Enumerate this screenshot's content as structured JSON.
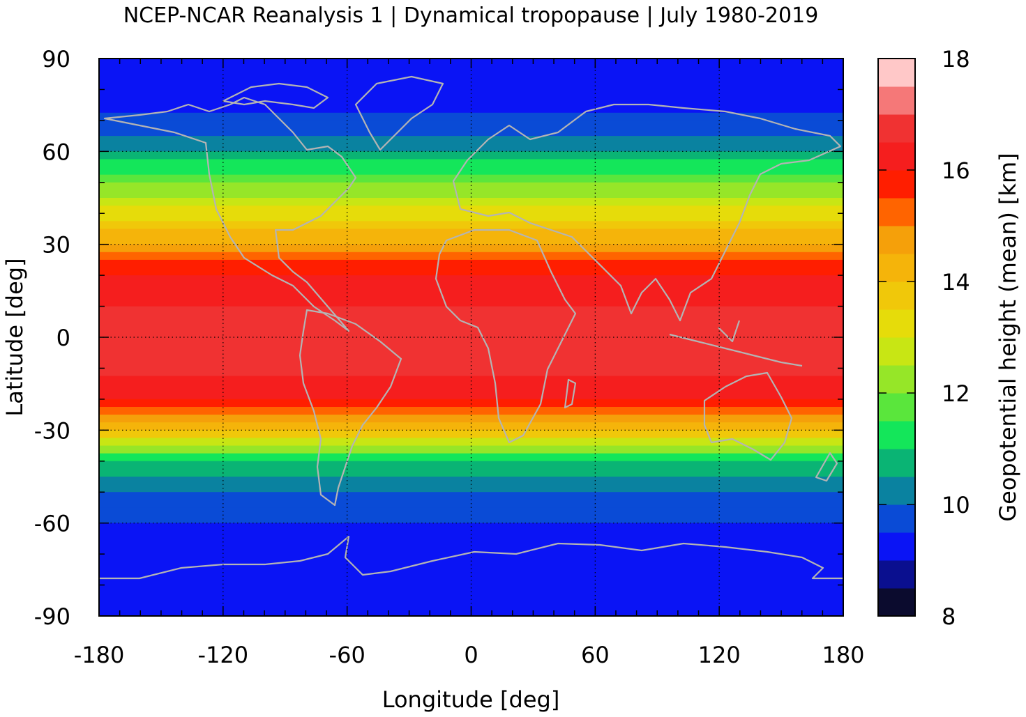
{
  "chart_data": {
    "type": "heatmap",
    "title": "NCEP-NCAR Reanalysis 1 | Dynamical tropopause | July 1980-2019",
    "xlabel": "Longitude [deg]",
    "ylabel": "Latitude [deg]",
    "colorbar_label": "Geopotential height (mean) [km]",
    "xlim": [
      -180,
      180
    ],
    "ylim": [
      -90,
      90
    ],
    "xticks": [
      -180,
      -120,
      -60,
      0,
      60,
      120,
      180
    ],
    "yticks": [
      90,
      60,
      30,
      0,
      -30,
      -60,
      -90
    ],
    "xtick_labels": [
      "-180",
      "-120",
      "-60",
      "0",
      "60",
      "120",
      "180"
    ],
    "ytick_labels": [
      "90",
      "60",
      "30",
      "0",
      "-30",
      "-60",
      "-90"
    ],
    "colorbar_ticks": [
      "18",
      "16",
      "14",
      "12",
      "10",
      "8"
    ],
    "colorbar_range": [
      8,
      18
    ],
    "grid": true,
    "coastlines": true,
    "levels_km": [
      8,
      8.5,
      9,
      9.5,
      10,
      10.5,
      11,
      11.5,
      12,
      12.5,
      13,
      13.5,
      14,
      14.5,
      15,
      15.5,
      16,
      16.5,
      17,
      17.5,
      18
    ],
    "colors": [
      "#0b0b2e",
      "#0a0f8f",
      "#0a14f5",
      "#0a4bd6",
      "#0a82a0",
      "#0ab474",
      "#14e65a",
      "#5ae63c",
      "#96e628",
      "#c8e614",
      "#e6dc0a",
      "#f0c80a",
      "#f5b40a",
      "#f5a00a",
      "#ff6400",
      "#ff1e00",
      "#f51e1e",
      "#f03232",
      "#f57878",
      "#ffc8c8"
    ],
    "zonal_mean_profile": {
      "lat": [
        -90,
        -80,
        -70,
        -60,
        -50,
        -40,
        -30,
        -20,
        -10,
        0,
        10,
        20,
        30,
        40,
        50,
        60,
        70,
        80,
        90
      ],
      "height_km": [
        9.3,
        9.3,
        9.4,
        9.5,
        10.0,
        10.8,
        14.0,
        16.2,
        16.6,
        16.5,
        16.5,
        16.2,
        14.5,
        13.2,
        12.0,
        10.6,
        9.6,
        9.3,
        9.0
      ]
    }
  }
}
